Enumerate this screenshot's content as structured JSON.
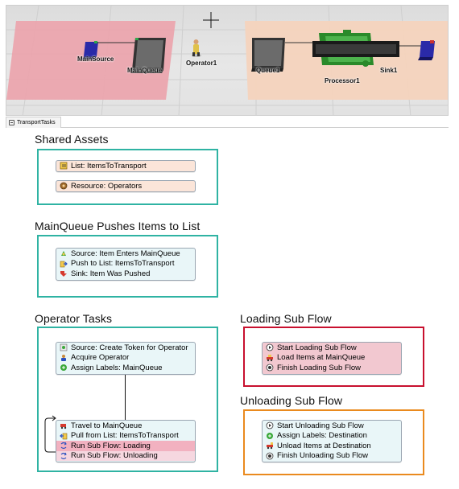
{
  "model_view": {
    "labels": {
      "main_source": "MainSource",
      "main_queue": "MainQueue",
      "operator": "Operator1",
      "queue": "Queue1",
      "processor": "Processor1",
      "sink": "Sink1"
    }
  },
  "tab": {
    "label": "TransportTasks"
  },
  "sections": {
    "shared_assets": {
      "title": "Shared Assets",
      "items": [
        {
          "label": "List: ItemsToTransport",
          "icon": "list-icon"
        },
        {
          "label": "Resource: Operators",
          "icon": "resource-icon"
        }
      ]
    },
    "push": {
      "title": "MainQueue Pushes Items to List",
      "items": [
        {
          "label": "Source: Item Enters MainQueue",
          "icon": "source-icon"
        },
        {
          "label": "Push to List: ItemsToTransport",
          "icon": "push-icon"
        },
        {
          "label": "Sink: Item Was Pushed",
          "icon": "sink-icon"
        }
      ]
    },
    "operator_tasks": {
      "title": "Operator Tasks",
      "block1": [
        {
          "label": "Source: Create Token for Operator",
          "icon": "source-icon"
        },
        {
          "label": "Acquire Operator",
          "icon": "acquire-icon"
        },
        {
          "label": "Assign Labels: MainQueue",
          "icon": "assign-icon"
        }
      ],
      "block2": [
        {
          "label": "Travel to MainQueue",
          "icon": "travel-icon"
        },
        {
          "label": "Pull from List: ItemsToTransport",
          "icon": "pull-icon"
        },
        {
          "label": "Run Sub Flow: Loading",
          "icon": "subflow-icon"
        },
        {
          "label": "Run Sub Flow: Unloading",
          "icon": "subflow-icon"
        }
      ]
    },
    "loading": {
      "title": "Loading Sub Flow",
      "items": [
        {
          "label": "Start Loading Sub Flow",
          "icon": "start-icon"
        },
        {
          "label": "Load Items at MainQueue",
          "icon": "load-icon"
        },
        {
          "label": "Finish Loading Sub Flow",
          "icon": "finish-icon"
        }
      ]
    },
    "unloading": {
      "title": "Unloading Sub Flow",
      "items": [
        {
          "label": "Start Unloading Sub Flow",
          "icon": "start-icon"
        },
        {
          "label": "Assign Labels: Destination",
          "icon": "assign-icon"
        },
        {
          "label": "Unload Items at Destination",
          "icon": "unload-icon"
        },
        {
          "label": "Finish Unloading Sub Flow",
          "icon": "finish-icon"
        }
      ]
    }
  },
  "colors": {
    "teal_border": "#2fb3a3",
    "red_border": "#c8102e",
    "orange_border": "#ea8a1e",
    "source_area": "#eba4ad",
    "processor_area": "#f4d3bd"
  }
}
